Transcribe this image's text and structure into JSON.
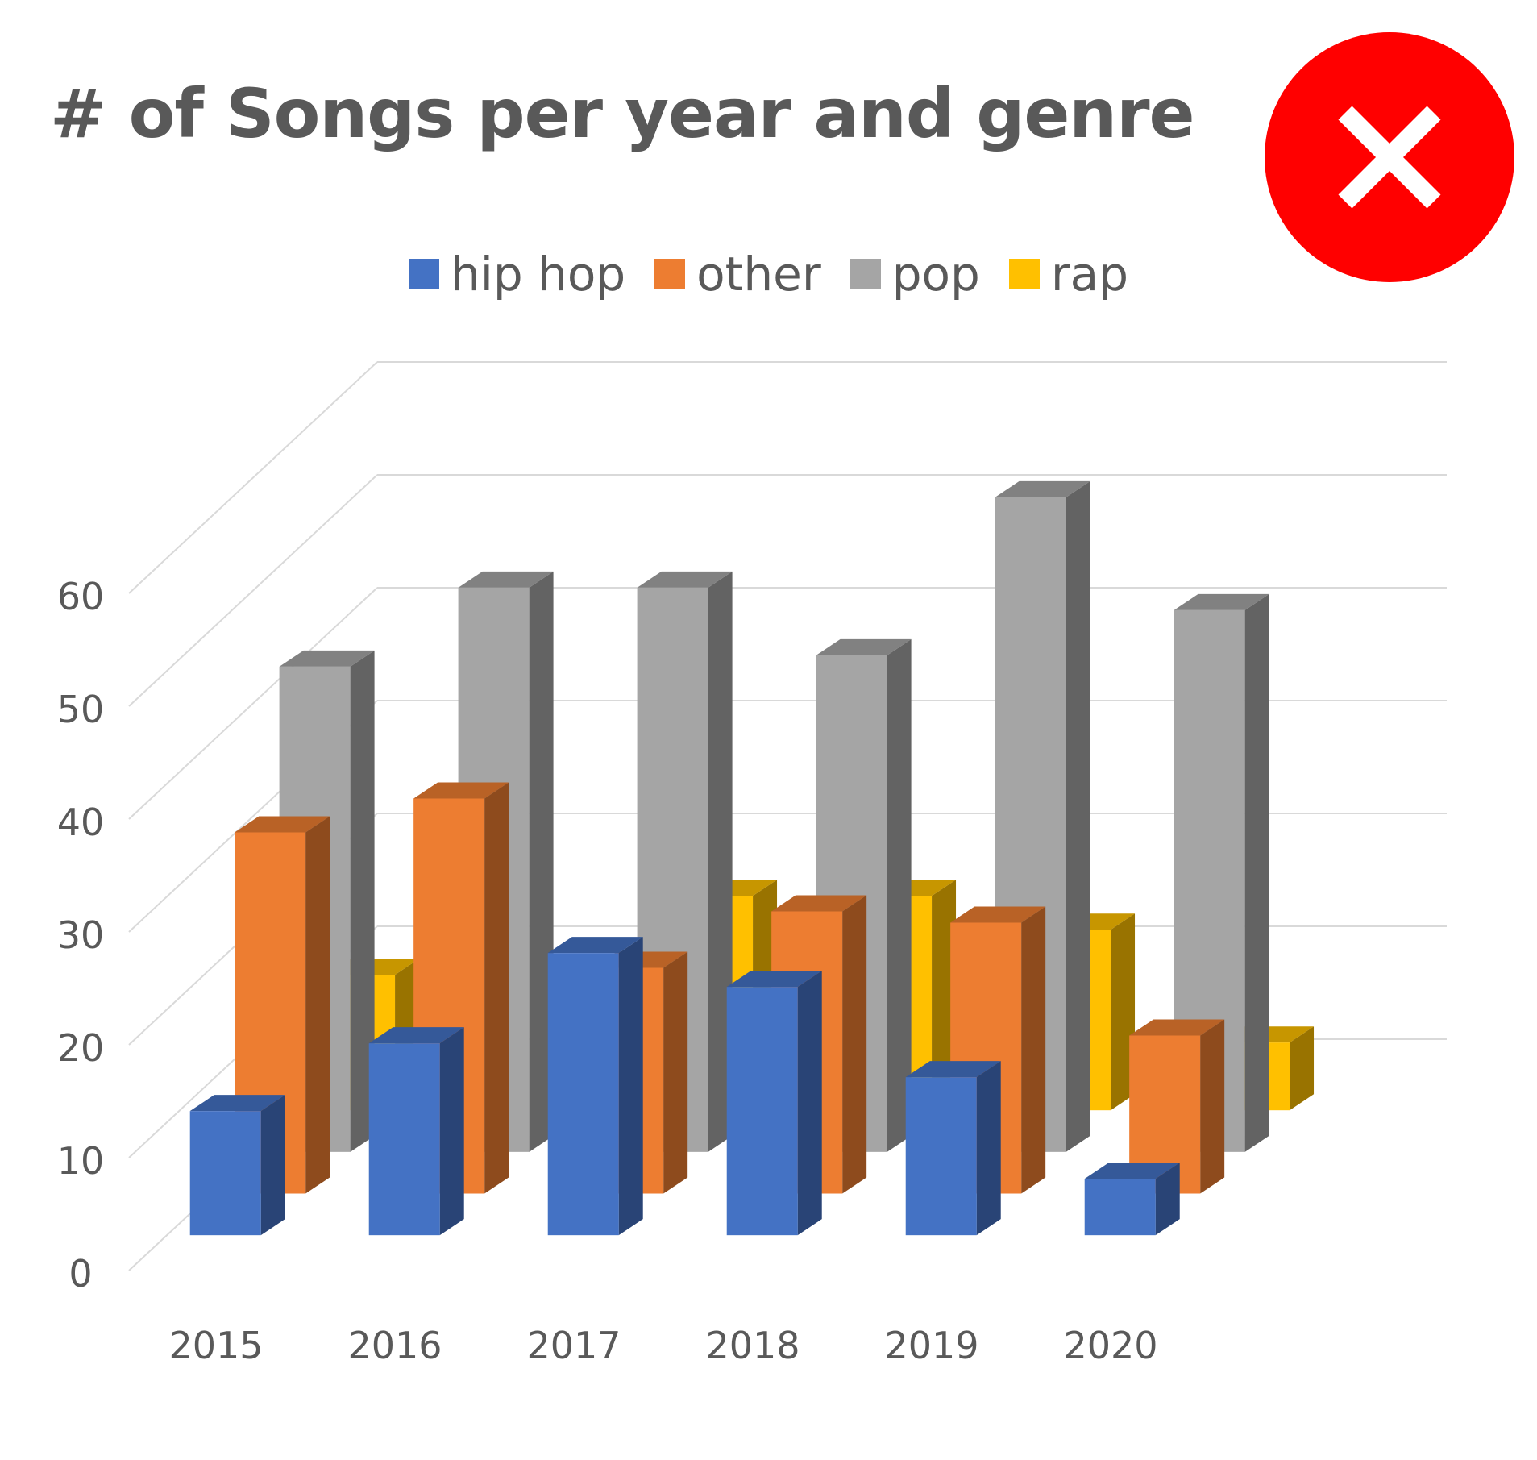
{
  "page": {
    "title": "# of Songs per year and genre"
  },
  "status_badge": {
    "icon": "close-icon",
    "background": "#ff0000",
    "foreground": "#ffffff"
  },
  "chart_data": {
    "type": "bar",
    "subtype": "3d-clustered-column",
    "title": "# of Songs per year and genre",
    "xlabel": "",
    "ylabel": "",
    "ylim": [
      0,
      60
    ],
    "yticks": [
      0,
      10,
      20,
      30,
      40,
      50,
      60
    ],
    "categories": [
      "2015",
      "2016",
      "2017",
      "2018",
      "2019",
      "2020"
    ],
    "series": [
      {
        "name": "hip hop",
        "color": "#4472c4",
        "values": [
          11,
          17,
          25,
          22,
          14,
          5
        ]
      },
      {
        "name": "other",
        "color": "#ed7d31",
        "values": [
          32,
          35,
          20,
          25,
          24,
          14
        ]
      },
      {
        "name": "pop",
        "color": "#a5a5a5",
        "values": [
          43,
          50,
          50,
          44,
          58,
          48
        ]
      },
      {
        "name": "rap",
        "color": "#ffc000",
        "values": [
          12,
          0,
          19,
          19,
          16,
          6
        ]
      }
    ],
    "legend_position": "top-center",
    "grid": true
  }
}
